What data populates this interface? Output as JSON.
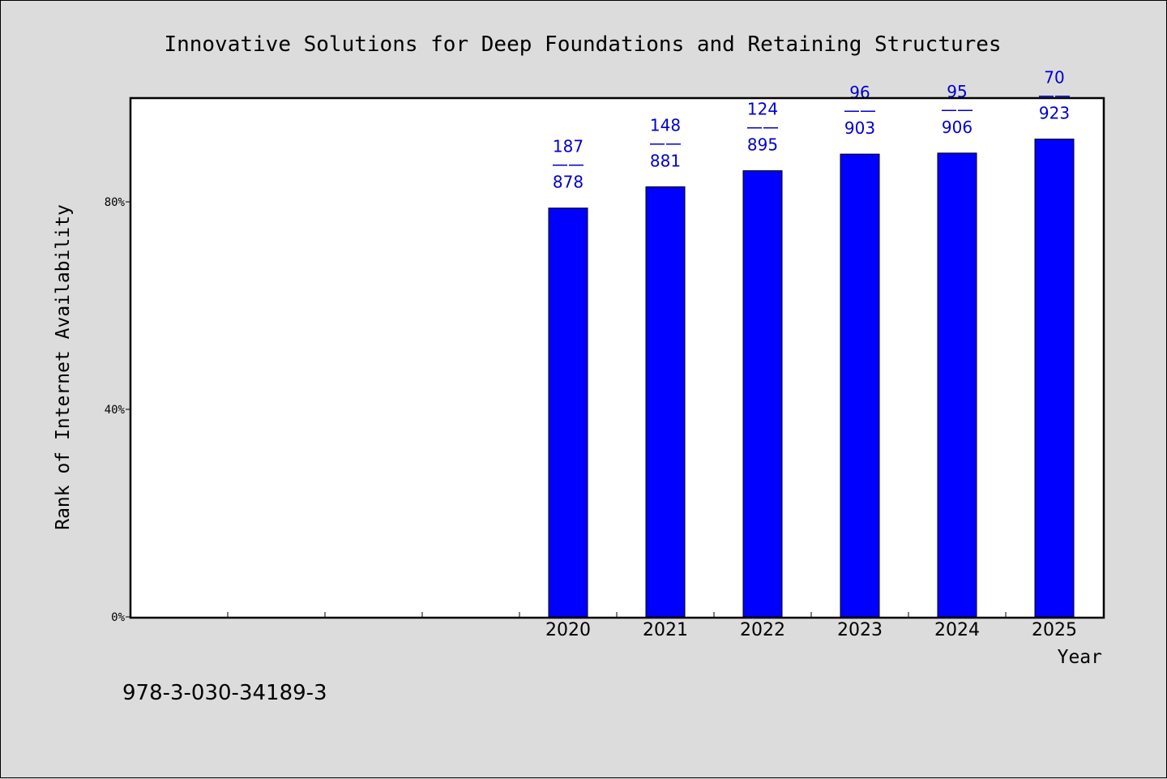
{
  "chart_data": {
    "type": "bar",
    "title": "Innovative Solutions for Deep Foundations and Retaining Structures",
    "xlabel": "Year",
    "ylabel": "Rank of Internet Availability",
    "categories": [
      "",
      "",
      "",
      "",
      "2020",
      "2021",
      "2022",
      "2023",
      "2024",
      "2025"
    ],
    "values": [
      null,
      null,
      null,
      null,
      78.8,
      82.9,
      86.0,
      89.2,
      89.4,
      92.1
    ],
    "bar_labels": [
      null,
      null,
      null,
      null,
      {
        "top": "187",
        "sep": "——",
        "bottom": "878"
      },
      {
        "top": "148",
        "sep": "——",
        "bottom": "881"
      },
      {
        "top": "124",
        "sep": "——",
        "bottom": "895"
      },
      {
        "top": "96",
        "sep": "——",
        "bottom": "903"
      },
      {
        "top": "95",
        "sep": "——",
        "bottom": "906"
      },
      {
        "top": "70",
        "sep": "——",
        "bottom": "923"
      }
    ],
    "ylim": [
      0,
      100
    ],
    "yticks": [
      {
        "value": 0,
        "label": "0%"
      },
      {
        "value": 40,
        "label": "40%"
      },
      {
        "value": 80,
        "label": "80%"
      }
    ],
    "grid": false,
    "colors": {
      "bar": "#0000ff",
      "label": "#0000cc",
      "background": "#dcdcdc",
      "plot": "#ffffff"
    }
  },
  "footer": {
    "isbn": "978-3-030-34189-3"
  }
}
